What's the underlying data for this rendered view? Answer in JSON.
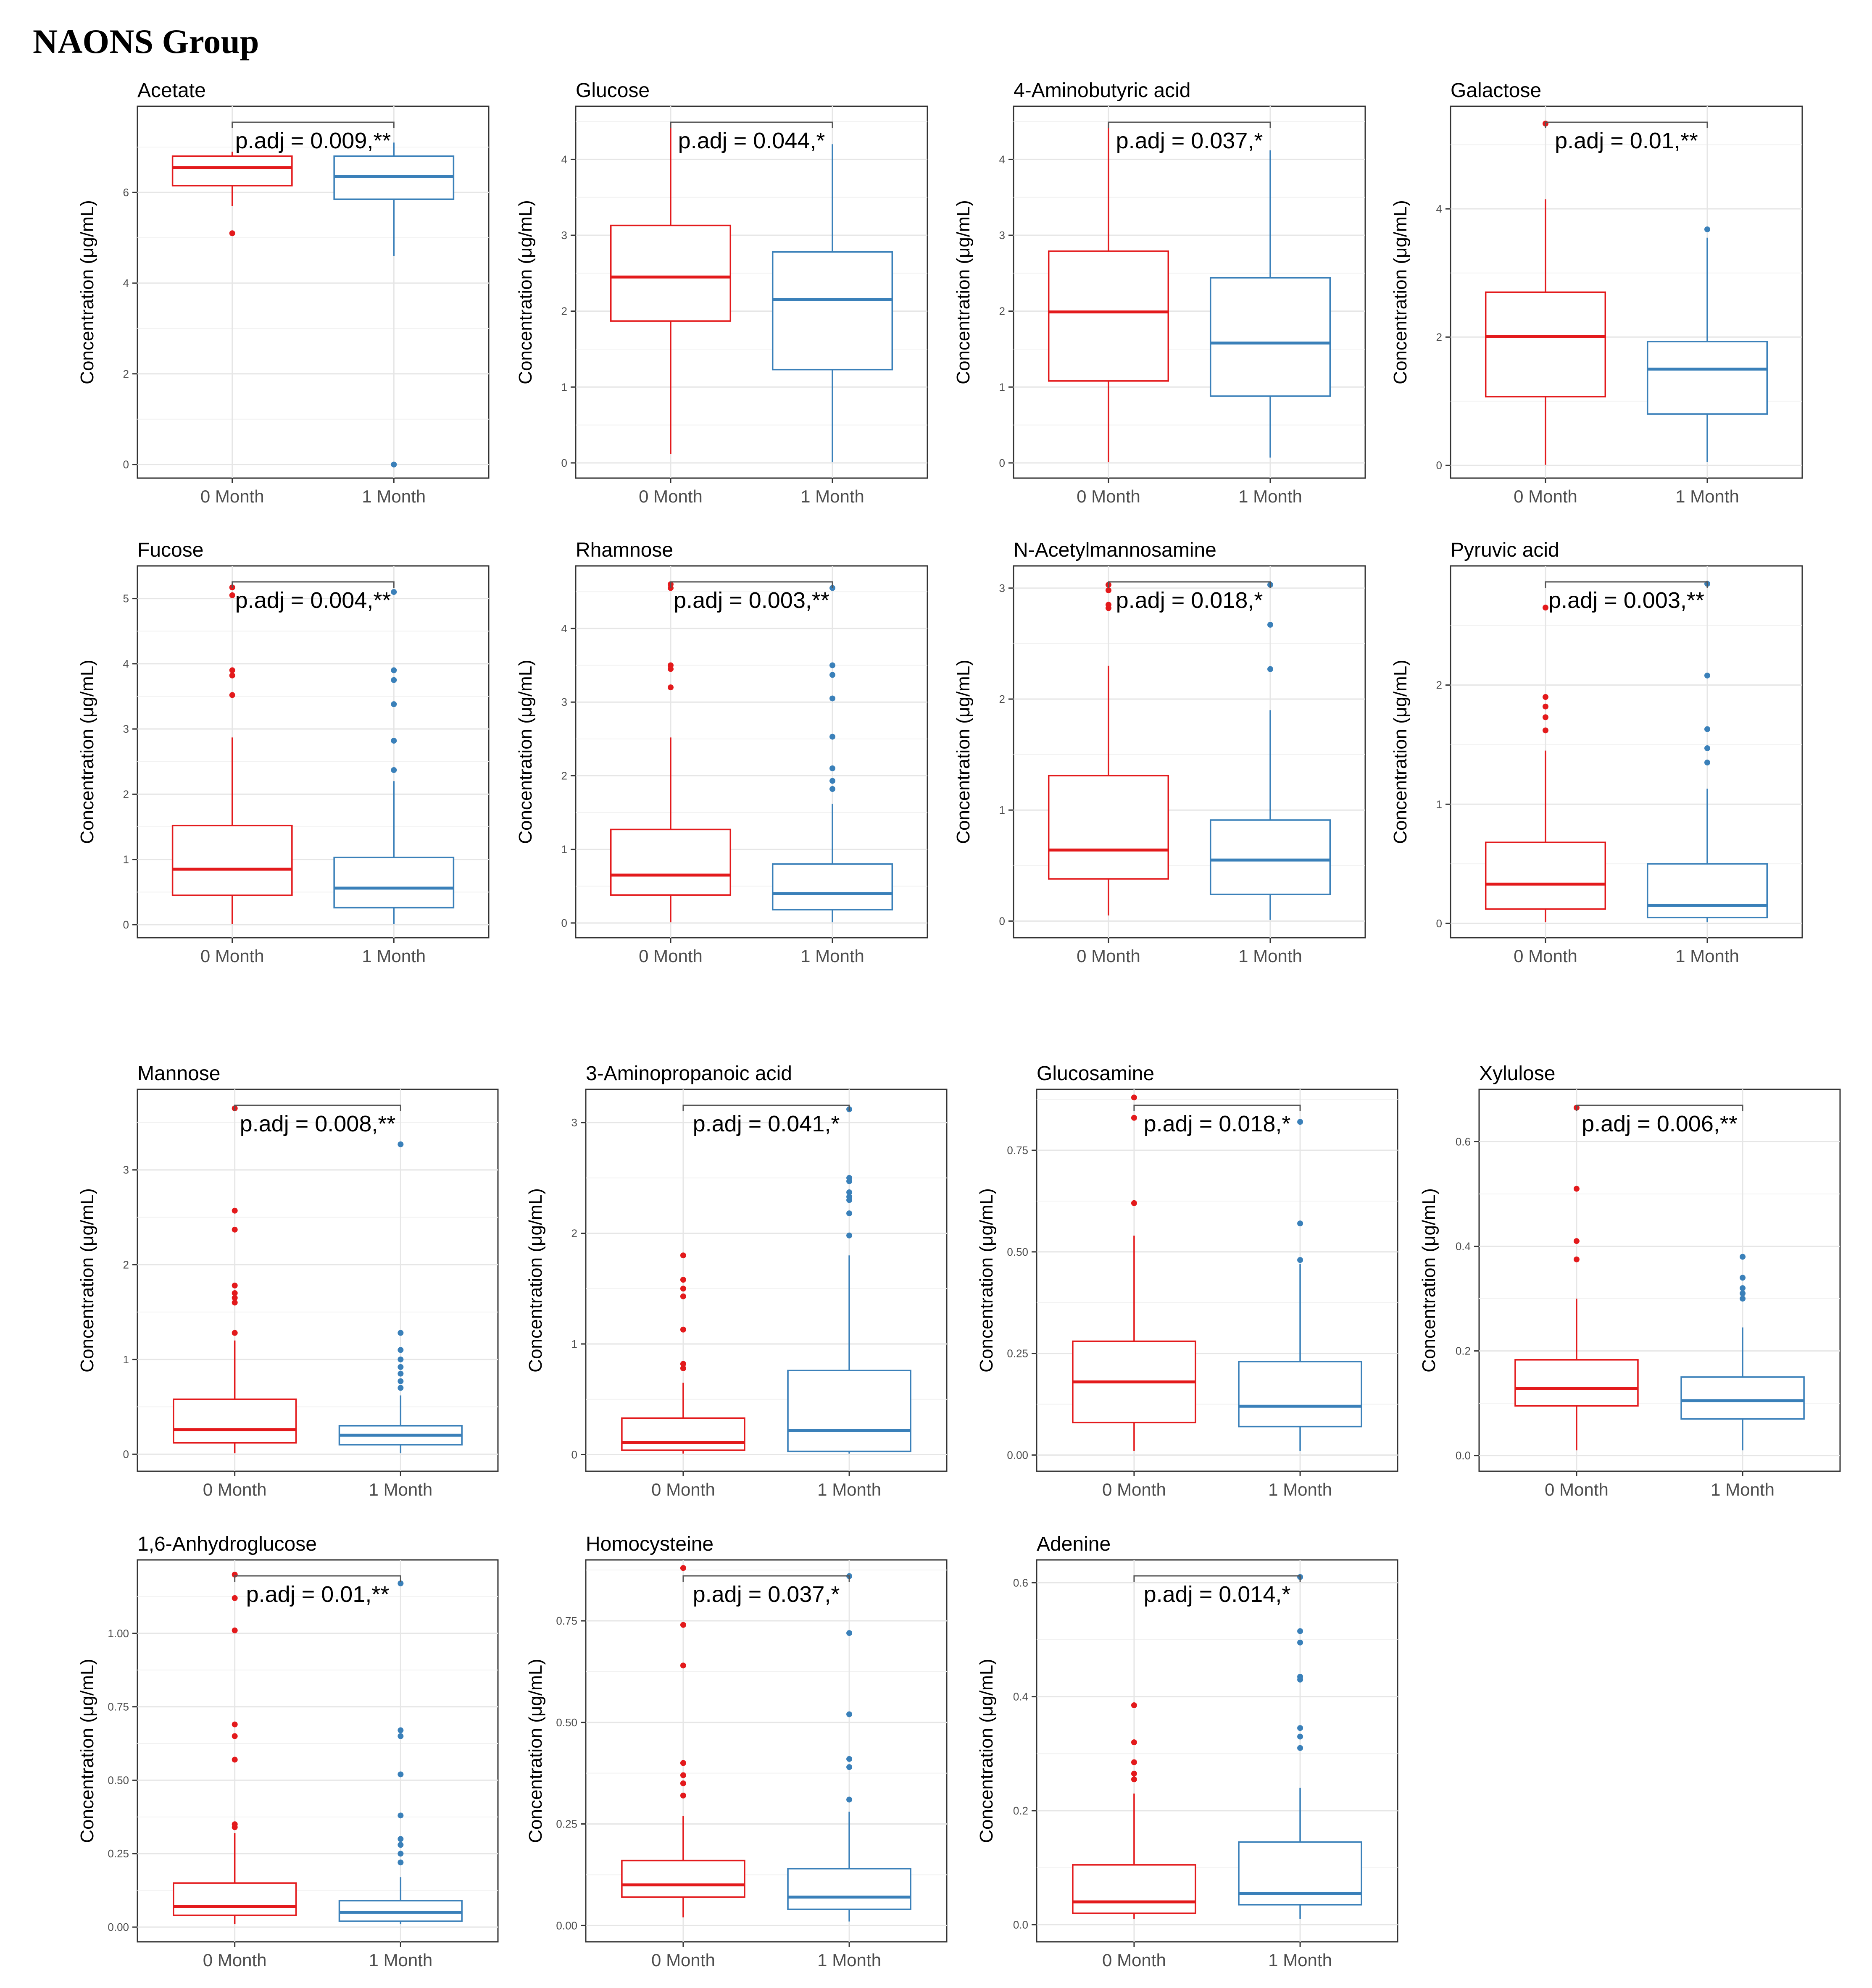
{
  "header": {
    "title": "NAONS Group"
  },
  "ylabel": "Concentration (μg/mL)",
  "categories": [
    "0 Month",
    "1 Month"
  ],
  "colors": {
    "group0": "#e31a1c",
    "group1": "#3a80b9",
    "bracket": "#555555"
  },
  "chart_data": [
    {
      "type": "box",
      "title": "Acetate",
      "ylim": [
        -0.3,
        7.9
      ],
      "ticks": [
        "0",
        "2",
        "4",
        "6"
      ],
      "tickvals": [
        0,
        2,
        4,
        6
      ],
      "annotation": "p.adj = 0.009,**",
      "series": [
        {
          "name": "0 Month",
          "min": 5.7,
          "q1": 6.15,
          "median": 6.55,
          "q3": 6.8,
          "max": 6.9,
          "outliers": [
            5.1
          ]
        },
        {
          "name": "1 Month",
          "min": 4.6,
          "q1": 5.85,
          "median": 6.35,
          "q3": 6.8,
          "max": 7.1,
          "outliers": [
            0
          ]
        }
      ]
    },
    {
      "type": "box",
      "title": "Glucose",
      "ylim": [
        -0.2,
        4.7
      ],
      "ticks": [
        "0",
        "1",
        "2",
        "3",
        "4"
      ],
      "tickvals": [
        0,
        1,
        2,
        3,
        4
      ],
      "annotation": "p.adj = 0.044,*",
      "series": [
        {
          "name": "0 Month",
          "min": 0.12,
          "q1": 1.87,
          "median": 2.45,
          "q3": 3.13,
          "max": 4.48,
          "outliers": []
        },
        {
          "name": "1 Month",
          "min": 0.01,
          "q1": 1.23,
          "median": 2.15,
          "q3": 2.78,
          "max": 4.2,
          "outliers": []
        }
      ]
    },
    {
      "type": "box",
      "title": "4-Aminobutyric acid",
      "ylim": [
        -0.2,
        4.7
      ],
      "ticks": [
        "0",
        "1",
        "2",
        "3",
        "4"
      ],
      "tickvals": [
        0,
        1,
        2,
        3,
        4
      ],
      "annotation": "p.adj = 0.037,*",
      "series": [
        {
          "name": "0 Month",
          "min": 0.01,
          "q1": 1.08,
          "median": 1.99,
          "q3": 2.79,
          "max": 4.48,
          "outliers": []
        },
        {
          "name": "1 Month",
          "min": 0.07,
          "q1": 0.88,
          "median": 1.58,
          "q3": 2.44,
          "max": 4.12,
          "outliers": []
        }
      ]
    },
    {
      "type": "box",
      "title": "Galactose",
      "ylim": [
        -0.2,
        5.6
      ],
      "ticks": [
        "0",
        "2",
        "4"
      ],
      "tickvals": [
        0,
        2,
        4
      ],
      "annotation": "p.adj = 0.01,**",
      "series": [
        {
          "name": "0 Month",
          "min": 0.01,
          "q1": 1.07,
          "median": 2.01,
          "q3": 2.7,
          "max": 4.15,
          "outliers": [
            5.33
          ]
        },
        {
          "name": "1 Month",
          "min": 0.05,
          "q1": 0.8,
          "median": 1.5,
          "q3": 1.93,
          "max": 3.55,
          "outliers": [
            3.68
          ]
        }
      ]
    },
    {
      "type": "box",
      "title": "Fucose",
      "ylim": [
        -0.2,
        5.5
      ],
      "ticks": [
        "0",
        "1",
        "2",
        "3",
        "4",
        "5"
      ],
      "tickvals": [
        0,
        1,
        2,
        3,
        4,
        5
      ],
      "annotation": "p.adj = 0.004,**",
      "series": [
        {
          "name": "0 Month",
          "min": 0.01,
          "q1": 0.45,
          "median": 0.85,
          "q3": 1.52,
          "max": 2.87,
          "outliers": [
            3.52,
            3.82,
            3.9,
            5.05,
            5.17
          ]
        },
        {
          "name": "1 Month",
          "min": 0.01,
          "q1": 0.26,
          "median": 0.56,
          "q3": 1.03,
          "max": 2.2,
          "outliers": [
            2.37,
            2.82,
            3.38,
            3.75,
            3.9,
            5.1
          ]
        }
      ]
    },
    {
      "type": "box",
      "title": "Rhamnose",
      "ylim": [
        -0.2,
        4.85
      ],
      "ticks": [
        "0",
        "1",
        "2",
        "3",
        "4"
      ],
      "tickvals": [
        0,
        1,
        2,
        3,
        4
      ],
      "annotation": "p.adj = 0.003,**",
      "series": [
        {
          "name": "0 Month",
          "min": 0.01,
          "q1": 0.38,
          "median": 0.65,
          "q3": 1.27,
          "max": 2.52,
          "outliers": [
            3.2,
            3.45,
            3.5,
            4.55,
            4.6
          ]
        },
        {
          "name": "1 Month",
          "min": 0.01,
          "q1": 0.18,
          "median": 0.4,
          "q3": 0.8,
          "max": 1.62,
          "outliers": [
            1.82,
            1.93,
            2.1,
            2.53,
            3.05,
            3.37,
            3.5,
            4.55
          ]
        }
      ]
    },
    {
      "type": "box",
      "title": "N-Acetylmannosamine",
      "ylim": [
        -0.15,
        3.2
      ],
      "ticks": [
        "0",
        "1",
        "2",
        "3"
      ],
      "tickvals": [
        0,
        1,
        2,
        3
      ],
      "annotation": "p.adj = 0.018,*",
      "series": [
        {
          "name": "0 Month",
          "min": 0.05,
          "q1": 0.38,
          "median": 0.64,
          "q3": 1.31,
          "max": 2.3,
          "outliers": [
            2.82,
            2.85,
            2.98,
            3.03
          ]
        },
        {
          "name": "1 Month",
          "min": 0.01,
          "q1": 0.24,
          "median": 0.55,
          "q3": 0.91,
          "max": 1.9,
          "outliers": [
            2.27,
            2.67,
            3.03
          ]
        }
      ]
    },
    {
      "type": "box",
      "title": "Pyruvic acid",
      "ylim": [
        -0.12,
        3.0
      ],
      "ticks": [
        "0",
        "1",
        "2"
      ],
      "tickvals": [
        0,
        1,
        2
      ],
      "annotation": "p.adj = 0.003,**",
      "series": [
        {
          "name": "0 Month",
          "min": 0.01,
          "q1": 0.12,
          "median": 0.33,
          "q3": 0.68,
          "max": 1.45,
          "outliers": [
            1.62,
            1.73,
            1.82,
            1.9,
            2.65
          ]
        },
        {
          "name": "1 Month",
          "min": 0.01,
          "q1": 0.05,
          "median": 0.15,
          "q3": 0.5,
          "max": 1.13,
          "outliers": [
            1.35,
            1.47,
            1.63,
            2.08,
            2.85
          ]
        }
      ]
    },
    {
      "type": "box",
      "title": "Mannose",
      "ylim": [
        -0.18,
        3.85
      ],
      "ticks": [
        "0",
        "1",
        "2",
        "3"
      ],
      "tickvals": [
        0,
        1,
        2,
        3
      ],
      "annotation": "p.adj = 0.008,**",
      "series": [
        {
          "name": "0 Month",
          "min": 0.01,
          "q1": 0.12,
          "median": 0.26,
          "q3": 0.58,
          "max": 1.2,
          "outliers": [
            1.28,
            1.6,
            1.65,
            1.7,
            1.78,
            2.37,
            2.57,
            3.65
          ]
        },
        {
          "name": "1 Month",
          "min": 0.01,
          "q1": 0.1,
          "median": 0.2,
          "q3": 0.3,
          "max": 0.62,
          "outliers": [
            0.7,
            0.77,
            0.85,
            0.92,
            1.0,
            1.1,
            1.28,
            3.27
          ]
        }
      ]
    },
    {
      "type": "box",
      "title": "3-Aminopropanoic acid",
      "ylim": [
        -0.15,
        3.3
      ],
      "ticks": [
        "0",
        "1",
        "2",
        "3"
      ],
      "tickvals": [
        0,
        1,
        2,
        3
      ],
      "annotation": "p.adj = 0.041,*",
      "series": [
        {
          "name": "0 Month",
          "min": 0.01,
          "q1": 0.04,
          "median": 0.11,
          "q3": 0.33,
          "max": 0.65,
          "outliers": [
            0.78,
            0.82,
            1.13,
            1.43,
            1.5,
            1.58,
            1.8
          ]
        },
        {
          "name": "1 Month",
          "min": 0.01,
          "q1": 0.03,
          "median": 0.22,
          "q3": 0.76,
          "max": 1.8,
          "outliers": [
            1.98,
            2.18,
            2.3,
            2.33,
            2.37,
            2.47,
            2.5,
            3.12
          ]
        }
      ]
    },
    {
      "type": "box",
      "title": "Glucosamine",
      "ylim": [
        -0.04,
        0.9
      ],
      "ticks": [
        "0.00",
        "0.25",
        "0.50",
        "0.75"
      ],
      "tickvals": [
        0,
        0.25,
        0.5,
        0.75
      ],
      "annotation": "p.adj = 0.018,*",
      "series": [
        {
          "name": "0 Month",
          "min": 0.01,
          "q1": 0.08,
          "median": 0.18,
          "q3": 0.28,
          "max": 0.54,
          "outliers": [
            0.62,
            0.83,
            0.88
          ]
        },
        {
          "name": "1 Month",
          "min": 0.01,
          "q1": 0.07,
          "median": 0.12,
          "q3": 0.23,
          "max": 0.47,
          "outliers": [
            0.48,
            0.57,
            0.82
          ]
        }
      ]
    },
    {
      "type": "box",
      "title": "Xylulose",
      "ylim": [
        -0.03,
        0.7
      ],
      "ticks": [
        "0.0",
        "0.2",
        "0.4",
        "0.6"
      ],
      "tickvals": [
        0,
        0.2,
        0.4,
        0.6
      ],
      "annotation": "p.adj = 0.006,**",
      "series": [
        {
          "name": "0 Month",
          "min": 0.01,
          "q1": 0.095,
          "median": 0.128,
          "q3": 0.183,
          "max": 0.3,
          "outliers": [
            0.375,
            0.41,
            0.51,
            0.665
          ]
        },
        {
          "name": "1 Month",
          "min": 0.01,
          "q1": 0.07,
          "median": 0.105,
          "q3": 0.15,
          "max": 0.245,
          "outliers": [
            0.3,
            0.31,
            0.32,
            0.34,
            0.38
          ]
        }
      ]
    },
    {
      "type": "box",
      "title": "1,6-Anhydroglucose",
      "ylim": [
        -0.05,
        1.25
      ],
      "ticks": [
        "0.00",
        "0.25",
        "0.50",
        "0.75",
        "1.00"
      ],
      "tickvals": [
        0,
        0.25,
        0.5,
        0.75,
        1.0
      ],
      "annotation": "p.adj = 0.01,**",
      "series": [
        {
          "name": "0 Month",
          "min": 0.01,
          "q1": 0.04,
          "median": 0.07,
          "q3": 0.15,
          "max": 0.32,
          "outliers": [
            0.34,
            0.35,
            0.57,
            0.65,
            0.69,
            1.01,
            1.12,
            1.2
          ]
        },
        {
          "name": "1 Month",
          "min": 0.01,
          "q1": 0.02,
          "median": 0.05,
          "q3": 0.09,
          "max": 0.17,
          "outliers": [
            0.22,
            0.25,
            0.28,
            0.3,
            0.38,
            0.52,
            0.65,
            0.67,
            1.17
          ]
        }
      ]
    },
    {
      "type": "box",
      "title": "Homocysteine",
      "ylim": [
        -0.04,
        0.9
      ],
      "ticks": [
        "0.00",
        "0.25",
        "0.50",
        "0.75"
      ],
      "tickvals": [
        0,
        0.25,
        0.5,
        0.75
      ],
      "annotation": "p.adj = 0.037,*",
      "series": [
        {
          "name": "0 Month",
          "min": 0.02,
          "q1": 0.07,
          "median": 0.1,
          "q3": 0.16,
          "max": 0.27,
          "outliers": [
            0.32,
            0.35,
            0.37,
            0.4,
            0.64,
            0.74,
            0.88
          ]
        },
        {
          "name": "1 Month",
          "min": 0.01,
          "q1": 0.04,
          "median": 0.07,
          "q3": 0.14,
          "max": 0.28,
          "outliers": [
            0.31,
            0.39,
            0.41,
            0.52,
            0.72,
            0.86
          ]
        }
      ]
    },
    {
      "type": "box",
      "title": "Adenine",
      "ylim": [
        -0.03,
        0.64
      ],
      "ticks": [
        "0.0",
        "0.2",
        "0.4",
        "0.6"
      ],
      "tickvals": [
        0,
        0.2,
        0.4,
        0.6
      ],
      "annotation": "p.adj = 0.014,*",
      "series": [
        {
          "name": "0 Month",
          "min": 0.01,
          "q1": 0.02,
          "median": 0.04,
          "q3": 0.105,
          "max": 0.23,
          "outliers": [
            0.255,
            0.265,
            0.285,
            0.32,
            0.385
          ]
        },
        {
          "name": "1 Month",
          "min": 0.01,
          "q1": 0.035,
          "median": 0.055,
          "q3": 0.145,
          "max": 0.24,
          "outliers": [
            0.31,
            0.33,
            0.345,
            0.43,
            0.435,
            0.495,
            0.515,
            0.61
          ]
        }
      ]
    }
  ]
}
